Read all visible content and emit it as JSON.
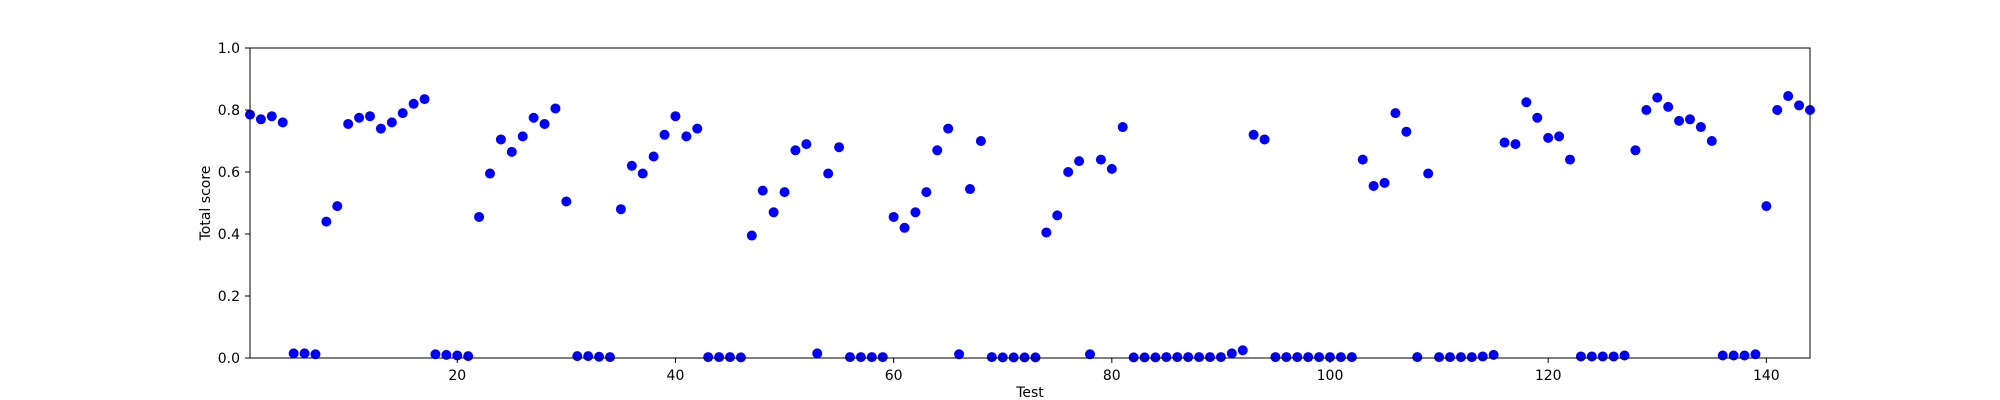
{
  "chart_data": {
    "type": "scatter",
    "title": "",
    "xlabel": "Test",
    "ylabel": "Total score",
    "xlim": [
      1,
      144
    ],
    "ylim": [
      0.0,
      1.0
    ],
    "xticks": [
      20,
      40,
      60,
      80,
      100,
      120,
      140
    ],
    "xtick_labels": [
      "20",
      "40",
      "60",
      "80",
      "100",
      "120",
      "140"
    ],
    "yticks": [
      0.0,
      0.2,
      0.4,
      0.6,
      0.8,
      1.0
    ],
    "ytick_labels": [
      "0.0",
      "0.2",
      "0.4",
      "0.6",
      "0.8",
      "1.0"
    ],
    "grid": false,
    "marker_color": "#0000ff",
    "series": [
      {
        "x": [
          1,
          2,
          3,
          4,
          5,
          6,
          7,
          8,
          9,
          10,
          11,
          12,
          13,
          14,
          15,
          16,
          17,
          18,
          19,
          20,
          21,
          22,
          23,
          24,
          25,
          26,
          27,
          28,
          29,
          30,
          31,
          32,
          33,
          34,
          35,
          36,
          37,
          38,
          39,
          40,
          41,
          42,
          43,
          44,
          45,
          46,
          47,
          48,
          49,
          50,
          51,
          52,
          53,
          54,
          55,
          56,
          57,
          58,
          59,
          60,
          61,
          62,
          63,
          64,
          65,
          66,
          67,
          68,
          69,
          70,
          71,
          72,
          73,
          74,
          75,
          76,
          77,
          78,
          79,
          80,
          81,
          82,
          83,
          84,
          85,
          86,
          87,
          88,
          89,
          90,
          91,
          92,
          93,
          94,
          95,
          96,
          97,
          98,
          99,
          100,
          101,
          102,
          103,
          104,
          105,
          106,
          107,
          108,
          109,
          110,
          111,
          112,
          113,
          114,
          115,
          116,
          117,
          118,
          119,
          120,
          121,
          122,
          123,
          124,
          125,
          126,
          127,
          128,
          129,
          130,
          131,
          132,
          133,
          134,
          135,
          136,
          137,
          138,
          139,
          140,
          141,
          142,
          143,
          144
        ],
        "y": [
          0.785,
          0.77,
          0.78,
          0.76,
          0.015,
          0.015,
          0.012,
          0.44,
          0.49,
          0.755,
          0.775,
          0.78,
          0.74,
          0.76,
          0.79,
          0.82,
          0.835,
          0.012,
          0.01,
          0.008,
          0.006,
          0.455,
          0.595,
          0.705,
          0.665,
          0.715,
          0.775,
          0.755,
          0.805,
          0.505,
          0.006,
          0.006,
          0.004,
          0.003,
          0.48,
          0.62,
          0.595,
          0.65,
          0.72,
          0.78,
          0.715,
          0.74,
          0.003,
          0.003,
          0.003,
          0.002,
          0.395,
          0.54,
          0.47,
          0.535,
          0.67,
          0.69,
          0.015,
          0.595,
          0.68,
          0.003,
          0.003,
          0.003,
          0.003,
          0.455,
          0.42,
          0.47,
          0.535,
          0.67,
          0.74,
          0.012,
          0.545,
          0.7,
          0.003,
          0.002,
          0.002,
          0.002,
          0.002,
          0.405,
          0.46,
          0.6,
          0.635,
          0.012,
          0.64,
          0.61,
          0.745,
          0.002,
          0.002,
          0.002,
          0.003,
          0.003,
          0.003,
          0.003,
          0.003,
          0.003,
          0.015,
          0.025,
          0.72,
          0.705,
          0.003,
          0.003,
          0.003,
          0.003,
          0.003,
          0.003,
          0.003,
          0.003,
          0.64,
          0.555,
          0.565,
          0.79,
          0.73,
          0.003,
          0.595,
          0.003,
          0.003,
          0.003,
          0.003,
          0.005,
          0.01,
          0.695,
          0.69,
          0.825,
          0.775,
          0.71,
          0.715,
          0.64,
          0.005,
          0.005,
          0.005,
          0.005,
          0.008,
          0.67,
          0.8,
          0.84,
          0.81,
          0.765,
          0.77,
          0.745,
          0.7,
          0.008,
          0.008,
          0.008,
          0.012,
          0.49,
          0.8,
          0.845,
          0.815,
          0.8
        ]
      }
    ]
  }
}
